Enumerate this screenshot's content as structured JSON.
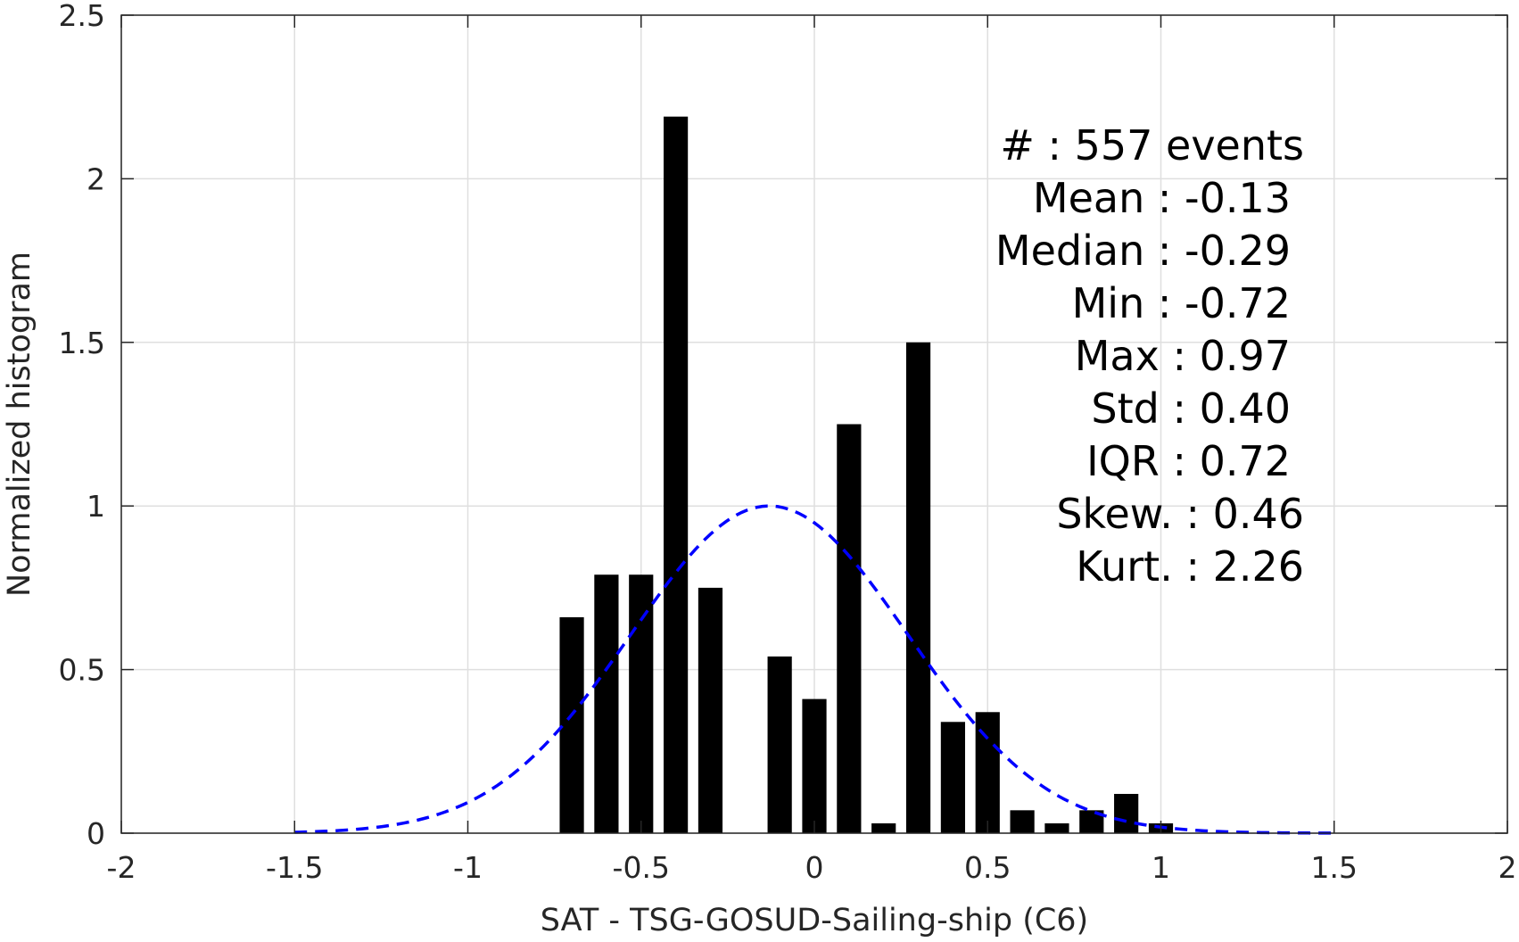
{
  "chart_data": {
    "type": "bar",
    "xlabel": "SAT - TSG-GOSUD-Sailing-ship (C6)",
    "ylabel": "Normalized histogram",
    "xlim": [
      -2,
      2
    ],
    "ylim": [
      0,
      2.5
    ],
    "grid": true,
    "xticks": [
      -2,
      -1.5,
      -1,
      -0.5,
      0,
      0.5,
      1,
      1.5,
      2
    ],
    "xtick_labels": [
      "-2",
      "-1.5",
      "-1",
      "-0.5",
      "0",
      "0.5",
      "1",
      "1.5",
      "2"
    ],
    "yticks": [
      0,
      0.5,
      1,
      1.5,
      2,
      2.5
    ],
    "ytick_labels": [
      "0",
      "0.5",
      "1",
      "1.5",
      "2",
      "2.5"
    ],
    "bar_width": 0.07,
    "bars": [
      {
        "x": -0.7,
        "value": 0.66
      },
      {
        "x": -0.6,
        "value": 0.79
      },
      {
        "x": -0.5,
        "value": 0.79
      },
      {
        "x": -0.4,
        "value": 2.19
      },
      {
        "x": -0.3,
        "value": 0.75
      },
      {
        "x": -0.1,
        "value": 0.54
      },
      {
        "x": 0.0,
        "value": 0.41
      },
      {
        "x": 0.1,
        "value": 1.25
      },
      {
        "x": 0.2,
        "value": 0.03
      },
      {
        "x": 0.3,
        "value": 1.5
      },
      {
        "x": 0.4,
        "value": 0.34
      },
      {
        "x": 0.5,
        "value": 0.37
      },
      {
        "x": 0.6,
        "value": 0.07
      },
      {
        "x": 0.7,
        "value": 0.03
      },
      {
        "x": 0.8,
        "value": 0.07
      },
      {
        "x": 0.9,
        "value": 0.12
      },
      {
        "x": 1.0,
        "value": 0.03
      }
    ],
    "fit_curve": {
      "kind": "gaussian",
      "mean": -0.13,
      "std": 0.4,
      "peak": 1.0,
      "x_range": [
        -1.5,
        1.5
      ],
      "color": "#0000ff",
      "style": "dashed"
    },
    "bar_color": "#000000",
    "annotation_lines": [
      "#  : 557 events",
      "Mean : -0.13",
      "Median : -0.29",
      "Min : -0.72",
      "Max : 0.97",
      "Std : 0.40",
      "IQR : 0.72",
      "Skew. : 0.46",
      "Kurt. : 2.26"
    ]
  }
}
